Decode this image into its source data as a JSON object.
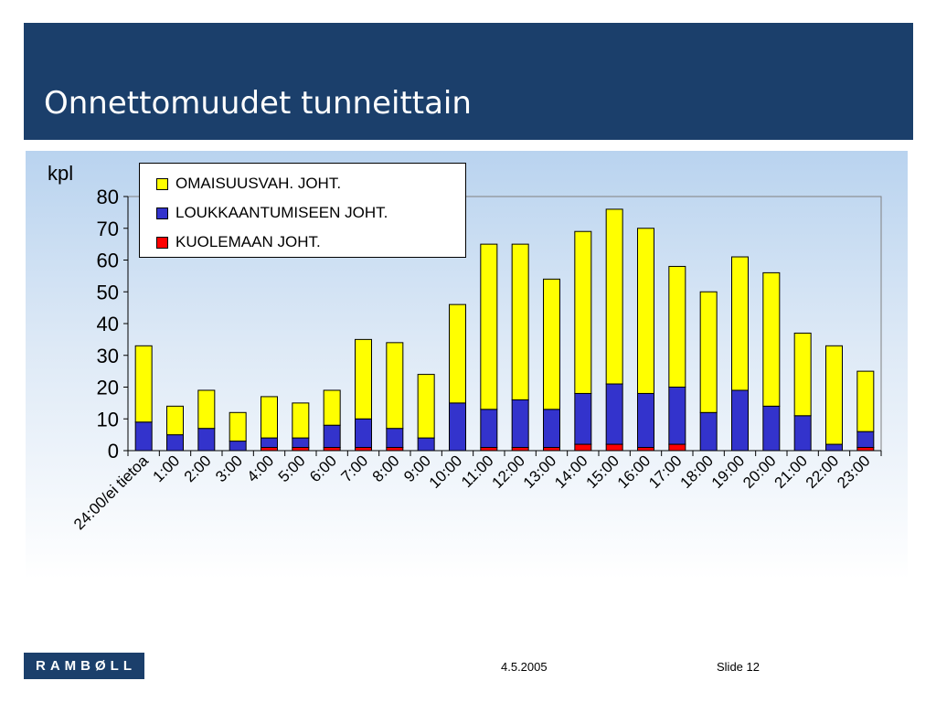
{
  "slide": {
    "title": "Onnettomuudet tunneittain",
    "footer_logo": "RAMBØLL",
    "footer_date": "4.5.2005",
    "footer_slide": "Slide 12"
  },
  "chart_data": {
    "type": "bar",
    "stacked": true,
    "ylabel": "kpl",
    "xlabel": "",
    "ylim": [
      0,
      80
    ],
    "yticks": [
      0,
      10,
      20,
      30,
      40,
      50,
      60,
      70,
      80
    ],
    "legend_position": "top-left",
    "categories": [
      "24:00/ei tietoa",
      "1:00",
      "2:00",
      "3:00",
      "4:00",
      "5:00",
      "6:00",
      "7:00",
      "8:00",
      "9:00",
      "10:00",
      "11:00",
      "12:00",
      "13:00",
      "14:00",
      "15:00",
      "16:00",
      "17:00",
      "18:00",
      "19:00",
      "20:00",
      "21:00",
      "22:00",
      "23:00"
    ],
    "series": [
      {
        "name": "KUOLEMAAN JOHT.",
        "color": "#ff0000",
        "values": [
          0,
          0,
          0,
          0,
          1,
          1,
          1,
          1,
          1,
          0,
          0,
          1,
          1,
          1,
          2,
          2,
          1,
          2,
          0,
          0,
          0,
          0,
          0,
          1
        ]
      },
      {
        "name": "LOUKKAANTUMISEEN JOHT.",
        "color": "#3333cc",
        "values": [
          9,
          5,
          7,
          3,
          3,
          3,
          7,
          9,
          6,
          4,
          15,
          12,
          15,
          12,
          16,
          19,
          17,
          18,
          12,
          19,
          14,
          11,
          2,
          5
        ]
      },
      {
        "name": "OMAISUUSVAH. JOHT.",
        "color": "#ffff00",
        "values": [
          24,
          9,
          12,
          9,
          13,
          11,
          11,
          25,
          27,
          20,
          31,
          52,
          49,
          41,
          51,
          55,
          52,
          38,
          38,
          42,
          42,
          26,
          31,
          19
        ]
      }
    ],
    "legend_order": [
      "OMAISUUSVAH. JOHT.",
      "LOUKKAANTUMISEEN JOHT.",
      "KUOLEMAAN JOHT."
    ]
  }
}
